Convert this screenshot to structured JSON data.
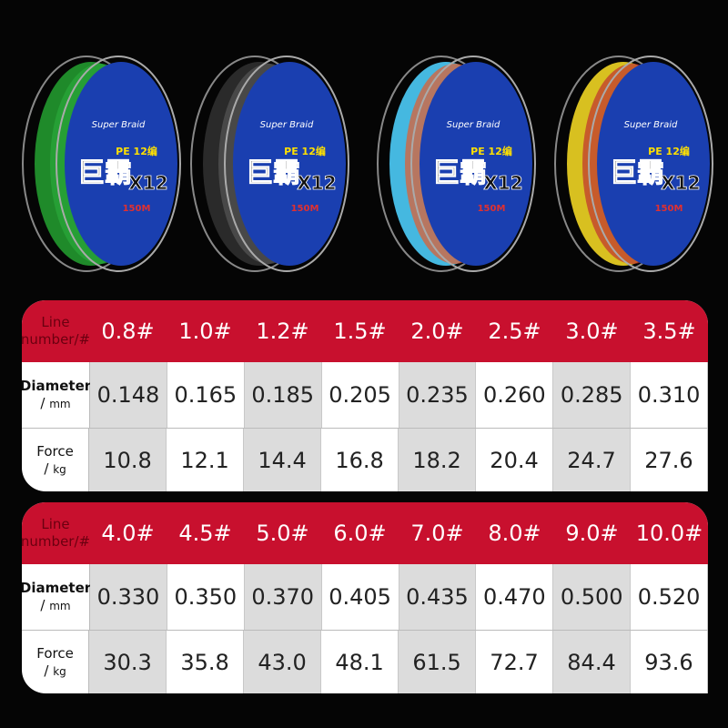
{
  "spools": [
    {
      "line_color": "green",
      "colors": [
        "#1f8a2a",
        "#2aa83a"
      ]
    },
    {
      "line_color": "black",
      "colors": [
        "#2a2a2a",
        "#555555"
      ]
    },
    {
      "line_color": "multicolor-blue-orange",
      "colors": [
        "#45b8e0",
        "#e85a2a"
      ]
    },
    {
      "line_color": "multicolor",
      "colors": [
        "#d8c020",
        "#c03030"
      ]
    }
  ],
  "label": {
    "brand_en": "Super Braid",
    "brand_cn": "巨霸",
    "pe": "PE 12编",
    "x12": "X12",
    "length": "150M"
  },
  "row_labels": {
    "line_a": "Line",
    "line_b": "number/#",
    "diam_a": "Diameter",
    "diam_b": "/",
    "diam_unit": "mm",
    "force_a": "Force",
    "force_b": "/",
    "force_unit": "kg"
  },
  "tables": [
    {
      "numbers": [
        "0.8#",
        "1.0#",
        "1.2#",
        "1.5#",
        "2.0#",
        "2.5#",
        "3.0#",
        "3.5#"
      ],
      "diameter": [
        "0.148",
        "0.165",
        "0.185",
        "0.205",
        "0.235",
        "0.260",
        "0.285",
        "0.310"
      ],
      "force": [
        "10.8",
        "12.1",
        "14.4",
        "16.8",
        "18.2",
        "20.4",
        "24.7",
        "27.6"
      ]
    },
    {
      "numbers": [
        "4.0#",
        "4.5#",
        "5.0#",
        "6.0#",
        "7.0#",
        "8.0#",
        "9.0#",
        "10.0#"
      ],
      "diameter": [
        "0.330",
        "0.350",
        "0.370",
        "0.405",
        "0.435",
        "0.470",
        "0.500",
        "0.520"
      ],
      "force": [
        "30.3",
        "35.8",
        "43.0",
        "48.1",
        "61.5",
        "72.7",
        "84.4",
        "93.6"
      ]
    }
  ],
  "colors": {
    "header": "#c8102e",
    "label_blue": "#1a3fb0"
  }
}
